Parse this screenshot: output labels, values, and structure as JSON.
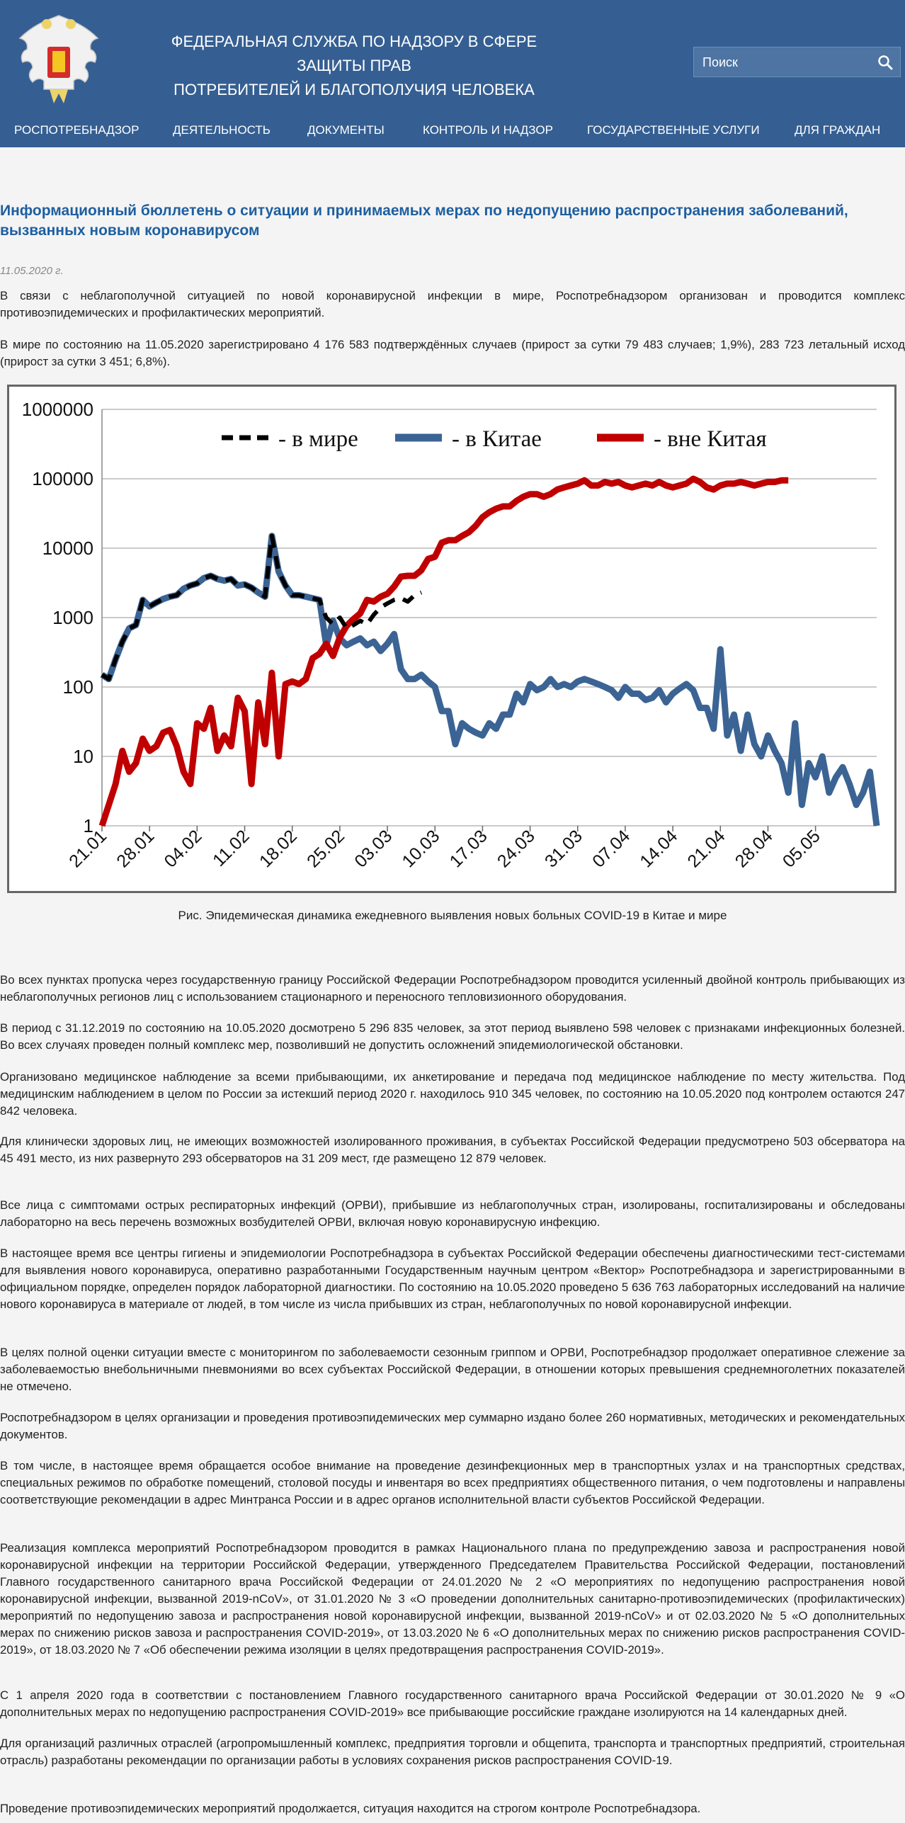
{
  "header": {
    "title_line1": "ФЕДЕРАЛЬНАЯ СЛУЖБА ПО НАДЗОРУ В СФЕРЕ ЗАЩИТЫ ПРАВ",
    "title_line2": "ПОТРЕБИТЕЛЕЙ И БЛАГОПОЛУЧИЯ ЧЕЛОВЕКА",
    "search_placeholder": "Поиск",
    "nav": [
      "РОСПОТРЕБНАДЗОР",
      "ДЕЯТЕЛЬНОСТЬ",
      "ДОКУМЕНТЫ",
      "КОНТРОЛЬ И НАДЗОР",
      "ГОСУДАРСТВЕННЫЕ УСЛУГИ",
      "ДЛЯ ГРАЖДАН"
    ]
  },
  "colors": {
    "header_bg": "#355f92",
    "title": "#1e5fa0",
    "world": "#000000",
    "china": "#3b6494",
    "outside": "#c00000"
  },
  "article": {
    "title": "Информационный бюллетень о ситуации и принимаемых мерах по недопущению распространения заболеваний, вызванных новым коронавирусом",
    "date": "11.05.2020 г.",
    "intro": [
      "В связи с неблагополучной ситуацией по новой коронавирусной инфекции в мире, Роспотребнадзором организован и проводится комплекс противоэпидемических и профилактических мероприятий.",
      "В мире по состоянию на 11.05.2020 зарегистрировано 4 176 583 подтверждённых случаев (прирост за сутки 79 483 случаев; 1,9%), 283 723 летальный исход (прирост за сутки 3 451; 6,8%)."
    ],
    "caption": "Рис. Эпидемическая динамика ежедневного выявления новых больных COVID-19 в Китае и мире",
    "paragraphs": [
      "Во всех пунктах пропуска через государственную границу Российской Федерации Роспотребнадзором проводится усиленный двойной контроль прибывающих из неблагополучных регионов лиц с использованием стационарного и переносного тепловизионного оборудования.",
      "В период с 31.12.2019 по состоянию на 10.05.2020 досмотрено 5 296 835 человек, за этот период выявлено 598 человек с признаками инфекционных болезней. Во всех случаях проведен полный комплекс мер, позволивший не допустить осложнений эпидемиологической обстановки.",
      "Организовано медицинское наблюдение за всеми прибывающими, их анкетирование и передача под медицинское наблюдение по месту жительства. Под медицинским наблюдением в целом по России за истекший период 2020 г. находилось 910 345 человек, по состоянию на 10.05.2020 под контролем остаются 247 842 человека.",
      "Для клинически здоровых лиц, не имеющих возможностей изолированного проживания, в субъектах Российской Федерации предусмотрено 503 обсерватора на 45 491 место, из них развернуто 293 обсерваторов на 31 209 мест, где размещено 12 879 человек.",
      "Все лица с симптомами острых респираторных инфекций (ОРВИ), прибывшие из неблагополучных стран, изолированы, госпитализированы и обследованы лабораторно на весь перечень возможных возбудителей ОРВИ, включая новую коронавирусную инфекцию.",
      "В настоящее время все центры гигиены и эпидемиологии Роспотребнадзора в субъектах Российской Федерации обеспечены диагностическими тест-системами для выявления нового коронавируса, оперативно разработанными Государственным научным центром «Вектор» Роспотребнадзора и зарегистрированными в официальном порядке, определен порядок лабораторной диагностики. По состоянию на 10.05.2020 проведено 5 636 763 лабораторных исследований на наличие нового коронавируса в материале от людей, в том числе из числа прибывших из стран, неблагополучных по новой коронавирусной инфекции.",
      "В целях полной оценки ситуации вместе с мониторингом по заболеваемости сезонным гриппом и ОРВИ, Роспотребнадзор продолжает оперативное слежение за заболеваемостью внебольничными пневмониями во всех субъектах Российской Федерации, в отношении которых превышения среднемноголетних показателей не отмечено.",
      "Роспотребнадзором в целях организации и проведения противоэпидемических мер суммарно издано более 260 нормативных, методических и рекомендательных документов.",
      "В том числе, в настоящее время обращается особое внимание на проведение дезинфекционных мер в транспортных узлах и на транспортных средствах, специальных режимов по обработке помещений, столовой посуды и инвентаря во всех предприятиях общественного питания, о чем подготовлены и направлены соответствующие рекомендации в адрес Минтранса России и в адрес органов исполнительной власти субъектов Российской Федерации.",
      "Реализация комплекса мероприятий Роспотребнадзором проводится в рамках Национального плана по предупреждению завоза и распространения новой коронавирусной инфекции на территории Российской Федерации, утвержденного Председателем Правительства Российской Федерации, постановлений Главного государственного санитарного врача Российской Федерации от 24.01.2020 № 2 «О мероприятиях по недопущению распространения новой коронавирусной инфекции, вызванной 2019-nCoV», от 31.01.2020 № 3 «О проведении дополнительных санитарно-противоэпидемических (профилактических) мероприятий по недопущению завоза и распространения новой коронавирусной инфекции, вызванной 2019-nCoV» и от 02.03.2020 № 5 «О дополнительных мерах по снижению рисков завоза и распространения COVID-2019», от 13.03.2020 № 6 «О дополнительных мерах по снижению рисков распространения COVID-2019», от 18.03.2020 № 7 «Об обеспечении режима изоляции в целях предотвращения распространения COVID-2019».",
      "С 1 апреля 2020 года в соответствии с постановлением Главного государственного санитарного врача Российской Федерации от 30.01.2020 № 9 «О дополнительных мерах по недопущению распространения COVID-2019» все прибывающие российские граждане изолируются на 14 календарных дней.",
      "Для организаций различных отраслей (агропромышленный комплекс, предприятия торговли и общепита, транспорта и транспортных предприятий, строительная отрасль) разработаны рекомендации по организации работы в условиях сохранения рисков распространения COVID-19.",
      "Проведение противоэпидемических мероприятий продолжается, ситуация находится на строгом контроле Роспотребнадзора."
    ]
  },
  "chart_data": {
    "type": "line",
    "yscale": "log",
    "ylim": [
      1,
      1000000
    ],
    "yticks": [
      "1",
      "10",
      "100",
      "1000",
      "10000",
      "100000",
      "1000000"
    ],
    "xtick_labels": [
      "21.01",
      "28.01",
      "04.02",
      "11.02",
      "18.02",
      "25.02",
      "03.03",
      "10.03",
      "17.03",
      "24.03",
      "31.03",
      "07.04",
      "14.04",
      "21.04",
      "28.04",
      "05.05"
    ],
    "grid": true,
    "legend_position": "top",
    "series": [
      {
        "name": "- в мире",
        "style": "dashed",
        "color": "#000000",
        "start_day": 0,
        "values": [
          150,
          130,
          250,
          450,
          700,
          780,
          1800,
          1450,
          1650,
          1850,
          2000,
          2100,
          2600,
          2900,
          3100,
          3700,
          4000,
          3600,
          3400,
          3600,
          2900,
          3000,
          2700,
          2300,
          2000,
          15000,
          4600,
          2900,
          2100,
          2100,
          2000,
          1900,
          1800,
          1000,
          800,
          1000,
          700,
          780,
          900,
          800,
          1100,
          1400,
          1600,
          1800,
          1900,
          1700,
          2100,
          2300
        ]
      },
      {
        "name": "-  в Китае",
        "style": "solid",
        "color": "#3b6494",
        "values": [
          150,
          130,
          250,
          450,
          700,
          780,
          1800,
          1450,
          1650,
          1850,
          2000,
          2100,
          2600,
          2900,
          3100,
          3700,
          4000,
          3600,
          3400,
          3600,
          2900,
          3000,
          2700,
          2300,
          2000,
          15000,
          4600,
          2900,
          2100,
          2100,
          2000,
          1900,
          1800,
          400,
          900,
          500,
          400,
          450,
          500,
          400,
          450,
          330,
          420,
          580,
          180,
          130,
          130,
          150,
          120,
          100,
          45,
          45,
          15,
          30,
          25,
          22,
          20,
          30,
          25,
          40,
          40,
          80,
          60,
          110,
          90,
          100,
          130,
          100,
          110,
          100,
          120,
          130,
          120,
          110,
          100,
          90,
          70,
          100,
          80,
          80,
          65,
          70,
          90,
          60,
          80,
          95,
          110,
          90,
          50,
          50,
          25,
          350,
          20,
          40,
          12,
          40,
          15,
          10,
          20,
          12,
          8,
          3,
          30,
          2,
          8,
          5,
          10,
          3,
          5,
          7,
          4,
          2,
          3,
          6,
          1
        ]
      },
      {
        "name": "- вне Китая",
        "style": "solid",
        "color": "#c00000",
        "values": [
          1,
          2,
          4,
          12,
          6,
          8,
          18,
          12,
          14,
          22,
          24,
          14,
          6,
          4,
          30,
          25,
          50,
          12,
          20,
          14,
          70,
          45,
          4,
          60,
          15,
          160,
          10,
          110,
          120,
          110,
          130,
          260,
          300,
          420,
          280,
          520,
          760,
          950,
          1150,
          1800,
          1700,
          2000,
          2200,
          2800,
          3900,
          4000,
          4000,
          4800,
          7000,
          7500,
          12000,
          13000,
          13000,
          15000,
          17000,
          21000,
          28000,
          33000,
          37000,
          40000,
          40000,
          48000,
          55000,
          60000,
          60000,
          55000,
          60000,
          70000,
          75000,
          80000,
          85000,
          95000,
          80000,
          80000,
          90000,
          85000,
          90000,
          80000,
          75000,
          80000,
          85000,
          80000,
          90000,
          80000,
          75000,
          80000,
          85000,
          100000,
          90000,
          75000,
          70000,
          80000,
          85000,
          85000,
          90000,
          85000,
          80000,
          85000,
          90000,
          90000,
          95000,
          95000
        ]
      }
    ]
  }
}
